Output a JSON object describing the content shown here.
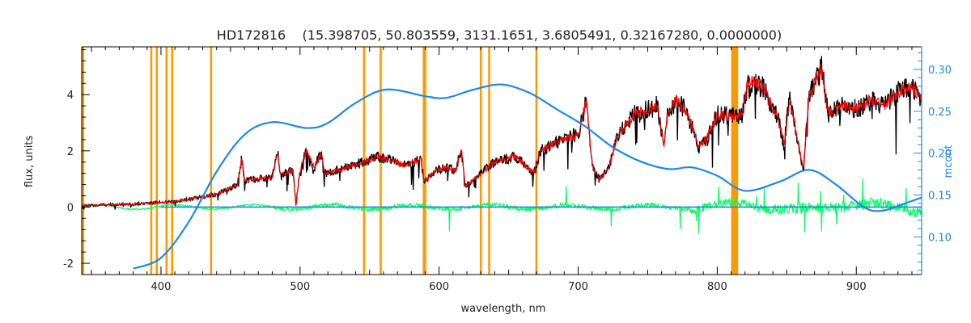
{
  "chart_data": {
    "type": "line",
    "title": "HD172816    (15.398705, 50.803559, 3131.1651, 3.6805491, 0.32167280, 0.0000000)",
    "xlabel": "wavelength, nm",
    "ylabel": "flux, units",
    "y2label": "mcont",
    "xlim": [
      343,
      947
    ],
    "ylim": [
      -2.4,
      5.7
    ],
    "y2lim": [
      0.055,
      0.327
    ],
    "x_ticks": [
      400,
      500,
      600,
      700,
      800,
      900
    ],
    "y_ticks": [
      -2,
      0,
      2,
      4
    ],
    "y2_ticks": [
      0.1,
      0.15,
      0.2,
      0.25,
      0.3
    ],
    "y2_tick_labels": [
      "0.10",
      "0.15",
      "0.20",
      "0.25",
      "0.30"
    ],
    "grid": false,
    "colors": {
      "observed": "#000000",
      "model": "#ff0000",
      "residual": "#00ff66",
      "continuum": "#1e88e5",
      "mask": "#ff9900",
      "axes": "#000000",
      "right_axis": "#1e88e5"
    },
    "masked_wavelengths": [
      344,
      393,
      397,
      404,
      408,
      436,
      546,
      558,
      589,
      590,
      630,
      636,
      670
    ],
    "masked_bands": [
      [
        810,
        815
      ]
    ],
    "observed_anchors": [
      [
        343,
        0.05
      ],
      [
        380,
        0.1
      ],
      [
        410,
        0.2
      ],
      [
        440,
        0.45
      ],
      [
        455,
        0.8
      ],
      [
        458,
        1.7
      ],
      [
        460,
        0.95
      ],
      [
        480,
        1.05
      ],
      [
        484,
        2.0
      ],
      [
        486,
        1.15
      ],
      [
        495,
        1.3
      ],
      [
        497,
        0.05
      ],
      [
        500,
        1.3
      ],
      [
        505,
        2.05
      ],
      [
        510,
        1.4
      ],
      [
        515,
        1.9
      ],
      [
        518,
        1.2
      ],
      [
        540,
        1.5
      ],
      [
        556,
        1.8
      ],
      [
        575,
        1.5
      ],
      [
        587,
        1.7
      ],
      [
        589,
        0.9
      ],
      [
        598,
        1.3
      ],
      [
        605,
        1.4
      ],
      [
        612,
        1.3
      ],
      [
        616,
        2.1
      ],
      [
        619,
        0.75
      ],
      [
        640,
        1.6
      ],
      [
        655,
        1.8
      ],
      [
        668,
        1.2
      ],
      [
        673,
        2.0
      ],
      [
        690,
        2.4
      ],
      [
        700,
        2.6
      ],
      [
        706,
        3.8
      ],
      [
        710,
        1.5
      ],
      [
        715,
        1.0
      ],
      [
        722,
        1.4
      ],
      [
        728,
        2.5
      ],
      [
        740,
        3.3
      ],
      [
        757,
        3.6
      ],
      [
        760,
        2.6
      ],
      [
        762,
        2.2
      ],
      [
        764,
        3.2
      ],
      [
        770,
        3.8
      ],
      [
        778,
        3.4
      ],
      [
        787,
        2.1
      ],
      [
        793,
        2.5
      ],
      [
        800,
        3.3
      ],
      [
        818,
        3.2
      ],
      [
        822,
        4.5
      ],
      [
        832,
        4.3
      ],
      [
        844,
        3.1
      ],
      [
        848,
        2.2
      ],
      [
        852,
        3.9
      ],
      [
        862,
        1.3
      ],
      [
        866,
        4.0
      ],
      [
        875,
        4.9
      ],
      [
        880,
        3.3
      ],
      [
        890,
        3.6
      ],
      [
        900,
        3.5
      ],
      [
        910,
        3.8
      ],
      [
        920,
        3.6
      ],
      [
        930,
        4.1
      ],
      [
        940,
        4.3
      ],
      [
        947,
        3.8
      ]
    ],
    "continuum_anchors": [
      [
        380,
        0.062
      ],
      [
        400,
        0.075
      ],
      [
        420,
        0.118
      ],
      [
        440,
        0.178
      ],
      [
        460,
        0.222
      ],
      [
        480,
        0.237
      ],
      [
        505,
        0.23
      ],
      [
        520,
        0.236
      ],
      [
        540,
        0.26
      ],
      [
        562,
        0.276
      ],
      [
        590,
        0.268
      ],
      [
        605,
        0.266
      ],
      [
        625,
        0.276
      ],
      [
        645,
        0.282
      ],
      [
        665,
        0.272
      ],
      [
        685,
        0.252
      ],
      [
        705,
        0.232
      ],
      [
        725,
        0.207
      ],
      [
        745,
        0.19
      ],
      [
        765,
        0.181
      ],
      [
        782,
        0.183
      ],
      [
        800,
        0.173
      ],
      [
        820,
        0.155
      ],
      [
        845,
        0.166
      ],
      [
        866,
        0.18
      ],
      [
        885,
        0.163
      ],
      [
        905,
        0.136
      ],
      [
        918,
        0.131
      ],
      [
        935,
        0.14
      ],
      [
        947,
        0.147
      ]
    ]
  }
}
